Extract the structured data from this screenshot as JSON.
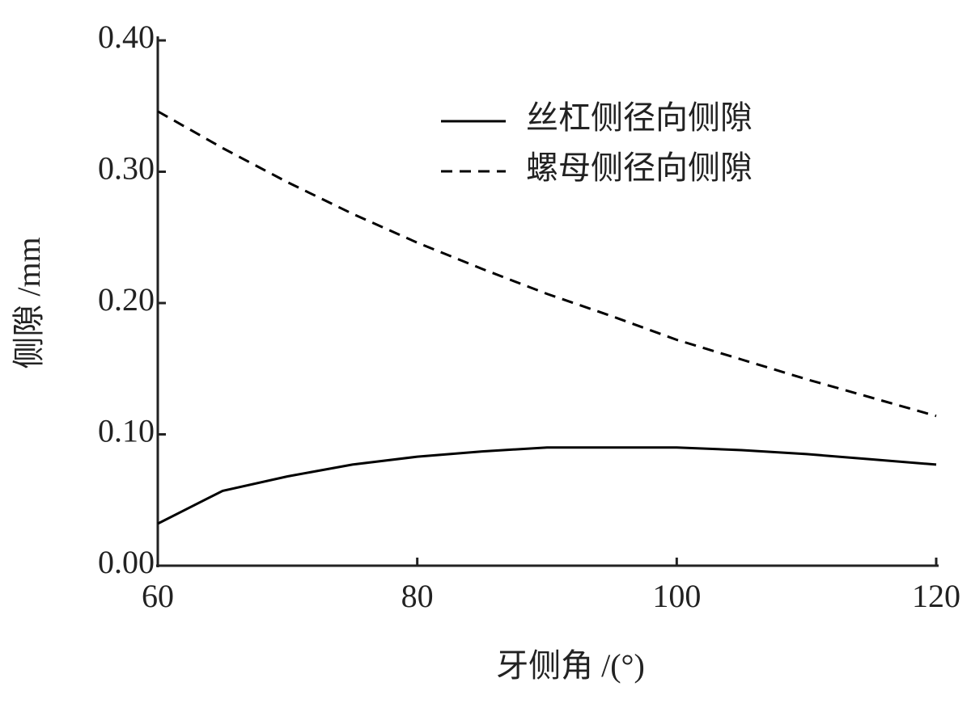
{
  "chart_data": {
    "type": "line",
    "x_label": "牙侧角 /(°)",
    "y_label": "侧隙 /mm",
    "x": [
      60,
      65,
      70,
      75,
      80,
      85,
      90,
      95,
      100,
      105,
      110,
      115,
      120
    ],
    "series": [
      {
        "name": "丝杠侧径向侧隙",
        "color": "#000000",
        "dash": false,
        "values": [
          0.032,
          0.057,
          0.068,
          0.077,
          0.083,
          0.087,
          0.09,
          0.09,
          0.09,
          0.088,
          0.085,
          0.081,
          0.077
        ]
      },
      {
        "name": "螺母侧径向侧隙",
        "color": "#000000",
        "dash": true,
        "values": [
          0.346,
          0.318,
          0.292,
          0.268,
          0.246,
          0.226,
          0.207,
          0.19,
          0.172,
          0.157,
          0.142,
          0.128,
          0.114
        ]
      }
    ],
    "xlim": [
      60,
      120
    ],
    "xticks": [
      60,
      80,
      100,
      120
    ],
    "ylim": [
      0,
      0.4
    ],
    "yticks": [
      {
        "value": 0,
        "label": "0.00"
      },
      {
        "value": 0.1,
        "label": "0.10"
      },
      {
        "value": 0.2,
        "label": "0.20"
      },
      {
        "value": 0.3,
        "label": "0.30"
      },
      {
        "value": 0.4,
        "label": "0.40"
      }
    ],
    "legend": "upper right"
  }
}
